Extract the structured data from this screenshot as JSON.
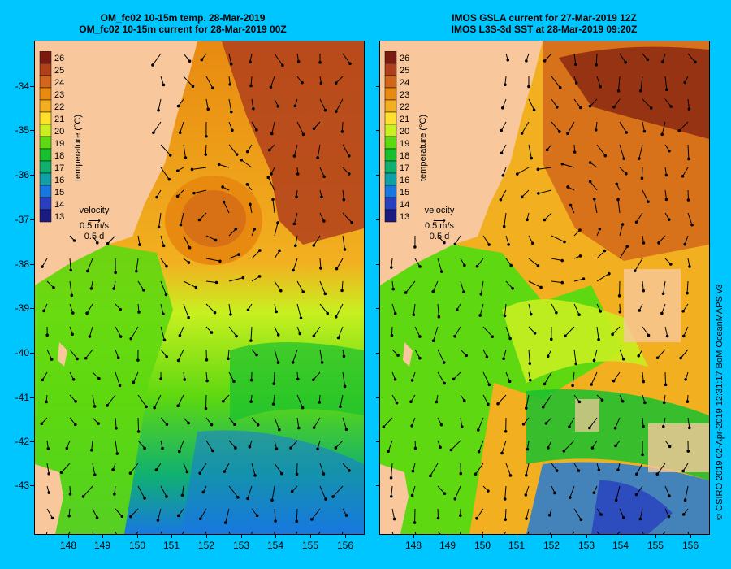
{
  "left_panel": {
    "title_line1": "OM_fc02 10-15m temp. 28-Mar-2019",
    "title_line2": "OM_fc02 10-15m current for 28-Mar-2019 00Z"
  },
  "right_panel": {
    "title_line1": "IMOS GSLA current for 27-Mar-2019 12Z",
    "title_line2": "IMOS L3S-3d SST at 28-Mar-2019 09:20Z"
  },
  "colorbar": {
    "label": "temperature (°C)",
    "values": [
      "26",
      "25",
      "24",
      "23",
      "22",
      "21",
      "20",
      "19",
      "18",
      "17",
      "16",
      "15",
      "14",
      "13"
    ],
    "colors": [
      "#7a1a10",
      "#b0401c",
      "#d2661a",
      "#e88a10",
      "#f2b020",
      "#ffe02a",
      "#c8f020",
      "#5ed810",
      "#18c030",
      "#10b070",
      "#10a0a8",
      "#1878e0",
      "#2840c0",
      "#1a1a80"
    ]
  },
  "velocity_legend": {
    "label": "velocity",
    "speed": "0.5 m/s",
    "time": "0.5 d"
  },
  "map_data": {
    "latitude_ticks": [
      "-34",
      "-35",
      "-36",
      "-37",
      "-38",
      "-39",
      "-40",
      "-41",
      "-42",
      "-43"
    ],
    "longitude_ticks": [
      "148",
      "149",
      "150",
      "151",
      "152",
      "153",
      "154",
      "155",
      "156"
    ]
  },
  "credit": "© CSIRO 2019   02-Apr-2019 12:31:17 BoM OceanMAPS v3",
  "colors": {
    "background": "#00c6ff",
    "land": "#f8c89c"
  }
}
